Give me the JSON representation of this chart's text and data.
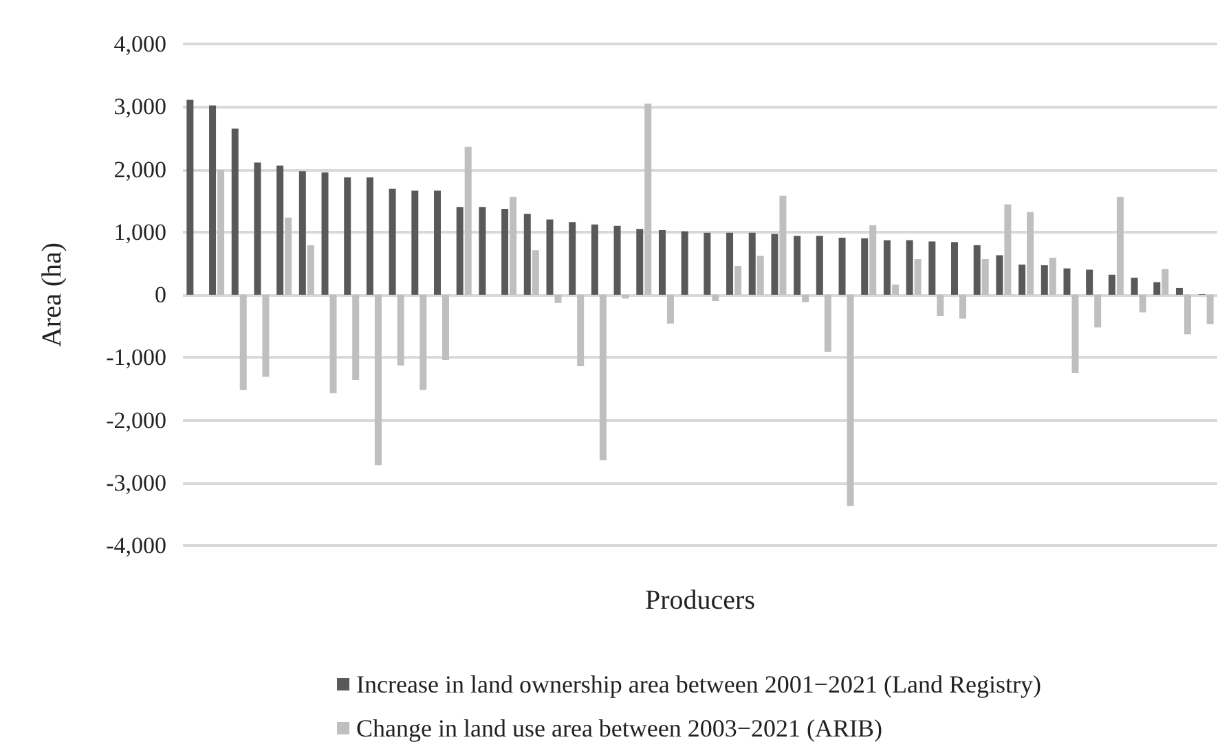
{
  "chart_data": {
    "type": "bar",
    "xlabel": "Producers",
    "ylabel": "Area (ha)",
    "categories": [
      null,
      null,
      null,
      null,
      null,
      null,
      null,
      null,
      null,
      null,
      null,
      null,
      null,
      null,
      null,
      null,
      null,
      null,
      null,
      null,
      null,
      null,
      null,
      null,
      null,
      null,
      null,
      null,
      null,
      null,
      null,
      null,
      null,
      null,
      null,
      null,
      null,
      null,
      null,
      null,
      null,
      null,
      null,
      null,
      null,
      null
    ],
    "series": [
      {
        "name": "Increase in land ownership area between 2001−2021 (Land Registry)",
        "color": "#595959",
        "values": [
          3110,
          3020,
          2650,
          2110,
          2060,
          1970,
          1950,
          1870,
          1870,
          1690,
          1660,
          1660,
          1400,
          1400,
          1370,
          1290,
          1200,
          1160,
          1120,
          1100,
          1050,
          1030,
          1010,
          990,
          990,
          990,
          970,
          940,
          940,
          910,
          900,
          870,
          870,
          850,
          840,
          790,
          630,
          480,
          470,
          420,
          400,
          320,
          270,
          200,
          110,
          10
        ]
      },
      {
        "name": "Change in land use area between 2003−2021 (ARIB)",
        "color": "#bfbfbf",
        "values": [
          null,
          1990,
          -1520,
          -1310,
          1230,
          790,
          -1570,
          -1360,
          -2720,
          -1130,
          -1520,
          -1040,
          2360,
          null,
          1560,
          710,
          -130,
          -1140,
          -2640,
          -60,
          3050,
          -460,
          null,
          -100,
          460,
          620,
          1580,
          -120,
          -910,
          -3370,
          1110,
          160,
          570,
          -340,
          -380,
          570,
          1440,
          1320,
          590,
          -1250,
          -520,
          1560,
          -280,
          410,
          -630,
          -470
        ]
      }
    ],
    "ylim": [
      -4000,
      4000
    ],
    "yticks": [
      {
        "value": -4000,
        "label": "-4,000"
      },
      {
        "value": -3000,
        "label": "-3,000"
      },
      {
        "value": -2000,
        "label": "-2,000"
      },
      {
        "value": -1000,
        "label": "-1,000"
      },
      {
        "value": 0,
        "label": "0"
      },
      {
        "value": 1000,
        "label": "1,000"
      },
      {
        "value": 2000,
        "label": "2,000"
      },
      {
        "value": 3000,
        "label": "3,000"
      },
      {
        "value": 4000,
        "label": "4,000"
      }
    ],
    "grid": "y",
    "legend": "bottom"
  }
}
